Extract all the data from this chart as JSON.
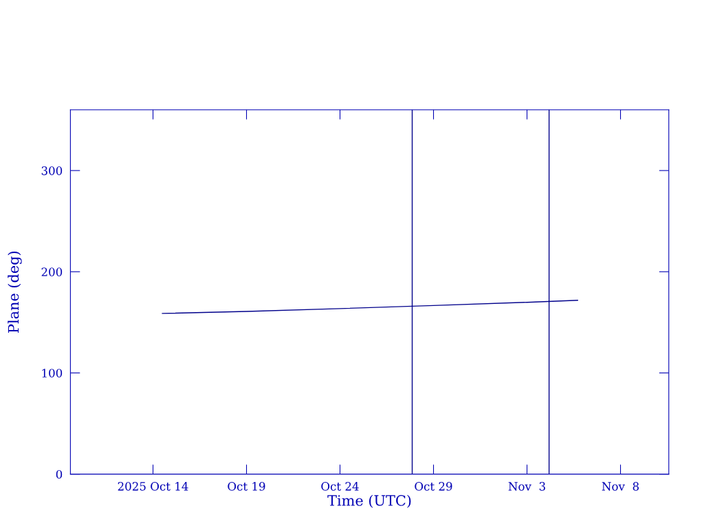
{
  "chart_data": {
    "type": "line",
    "xlabel": "Time (UTC)",
    "ylabel": "Plane (deg)",
    "x": [
      "2025-10-14T12:00",
      "2025-10-19T00:00",
      "2025-10-24T00:00",
      "2025-10-29T00:00",
      "2025-11-03T00:00",
      "2025-11-05T17:00"
    ],
    "series": [
      {
        "color": "#00008b",
        "values": [
          158.8,
          160.8,
          163.6,
          166.6,
          169.8,
          171.8
        ]
      }
    ],
    "xlim": [
      "2025-10-09T14:00",
      "2025-11-10T14:00"
    ],
    "xticks": [
      {
        "value": "2025-10-14",
        "label": "2025 Oct 14"
      },
      {
        "value": "2025-10-19",
        "label": "Oct 19"
      },
      {
        "value": "2025-10-24",
        "label": "Oct 24"
      },
      {
        "value": "2025-10-29",
        "label": "Oct 29"
      },
      {
        "value": "2025-11-03",
        "label": "Nov  3"
      },
      {
        "value": "2025-11-08",
        "label": "Nov  8"
      }
    ],
    "ylim": [
      0,
      360
    ],
    "yticks": [
      0,
      100,
      200,
      300
    ],
    "ref_lines": [
      {
        "axis": "x",
        "value": "2025-10-27T20:40",
        "color": "#00008b"
      },
      {
        "axis": "x",
        "value": "2025-11-04T04:20",
        "color": "#00008b"
      }
    ],
    "grid": false,
    "legend": false,
    "marker": "none",
    "line_style": "solid"
  }
}
